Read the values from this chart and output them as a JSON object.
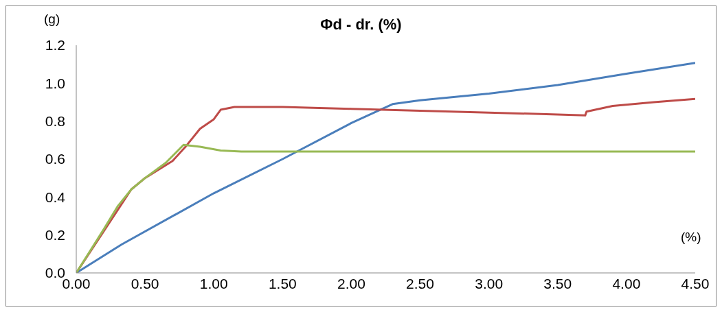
{
  "chart_data": {
    "type": "line",
    "title": "Φd - dr. (%)",
    "xlabel": "(%)",
    "ylabel": "(g)",
    "xlim": [
      0,
      4.5
    ],
    "ylim": [
      0,
      1.2
    ],
    "xticks": [
      {
        "value": 0,
        "label": "0.00"
      },
      {
        "value": 0.5,
        "label": "0.50"
      },
      {
        "value": 1,
        "label": "1.00"
      },
      {
        "value": 1.5,
        "label": "1.50"
      },
      {
        "value": 2,
        "label": "2.00"
      },
      {
        "value": 2.5,
        "label": "2.50"
      },
      {
        "value": 3,
        "label": "3.00"
      },
      {
        "value": 3.5,
        "label": "3.50"
      },
      {
        "value": 4,
        "label": "4.00"
      },
      {
        "value": 4.5,
        "label": "4.50"
      }
    ],
    "yticks": [
      {
        "value": 0,
        "label": "0.0"
      },
      {
        "value": 0.2,
        "label": "0.2"
      },
      {
        "value": 0.4,
        "label": "0.4"
      },
      {
        "value": 0.6,
        "label": "0.6"
      },
      {
        "value": 0.8,
        "label": "0.8"
      },
      {
        "value": 1,
        "label": "1.0"
      },
      {
        "value": 1.2,
        "label": "1.2"
      }
    ],
    "grid": false,
    "legend": false,
    "marker": "none",
    "line_style": "solid",
    "series": [
      {
        "color": "#4a7ebb",
        "x": [
          0,
          0.33,
          1.0,
          1.5,
          2.0,
          2.3,
          2.5,
          3.0,
          3.5,
          4.0,
          4.5
        ],
        "values": [
          0,
          0.15,
          0.42,
          0.6,
          0.79,
          0.89,
          0.91,
          0.945,
          0.99,
          1.05,
          1.107
        ]
      },
      {
        "color": "#be4b48",
        "x": [
          0,
          0.2,
          0.3,
          0.4,
          0.5,
          0.7,
          0.8,
          0.9,
          1.0,
          1.05,
          1.15,
          1.5,
          2.0,
          2.5,
          3.0,
          3.5,
          3.7,
          3.71,
          3.9,
          4.2,
          4.5
        ],
        "values": [
          0,
          0.22,
          0.33,
          0.44,
          0.5,
          0.59,
          0.67,
          0.76,
          0.81,
          0.86,
          0.875,
          0.875,
          0.865,
          0.855,
          0.845,
          0.835,
          0.83,
          0.85,
          0.88,
          0.9,
          0.917
        ]
      },
      {
        "color": "#98b954",
        "x": [
          0,
          0.2,
          0.3,
          0.4,
          0.5,
          0.65,
          0.78,
          0.9,
          1.05,
          1.2,
          1.5,
          2.5,
          3.5,
          4.5
        ],
        "values": [
          0,
          0.23,
          0.35,
          0.44,
          0.5,
          0.58,
          0.675,
          0.665,
          0.645,
          0.64,
          0.64,
          0.64,
          0.64,
          0.64
        ]
      }
    ]
  }
}
